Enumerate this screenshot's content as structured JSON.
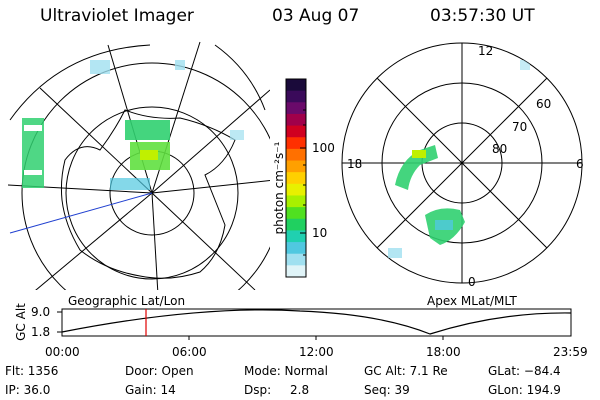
{
  "header": {
    "instrument": "Ultraviolet Imager",
    "date": "03 Aug 07",
    "time": "03:57:30 UT"
  },
  "left_panel": {
    "caption": "Geographic Lat/Lon"
  },
  "right_panel": {
    "caption": "Apex MLat/MLT",
    "mlt_labels": {
      "top": "12",
      "left": "18",
      "right": "6",
      "bottom": "0"
    },
    "lat_labels": [
      "60",
      "70",
      "80"
    ]
  },
  "colorbar": {
    "unit_label": "photon cm⁻²s⁻¹",
    "ticks": [
      "100",
      "10"
    ],
    "colors": [
      "#1a0a3a",
      "#3a0a5a",
      "#6a0a6a",
      "#a0004a",
      "#d00020",
      "#ff3000",
      "#ff7000",
      "#ffa000",
      "#ffd000",
      "#e8f000",
      "#a8f000",
      "#50e020",
      "#20d060",
      "#20d0b0",
      "#50c8e0",
      "#a0e0f0",
      "#e0f4f8"
    ]
  },
  "altitude_plot": {
    "ylabel": "GC Alt",
    "yticks": [
      "9.0",
      "1.8"
    ],
    "xticks": [
      "00:00",
      "06:00",
      "12:00",
      "18:00",
      "23:59"
    ],
    "current_time_fraction": 0.165
  },
  "info": {
    "flt": "Flt: 1356",
    "ip": "IP: 36.0",
    "door": "Door: Open",
    "gain": "Gain: 14",
    "mode": "Mode: Normal",
    "dsp_label": "Dsp:",
    "dsp_value": "2.8",
    "gc_alt": "GC Alt: 7.1 Re",
    "seq": "Seq: 39",
    "glat": "GLat: −84.4",
    "glon": "GLon: 194.9"
  }
}
